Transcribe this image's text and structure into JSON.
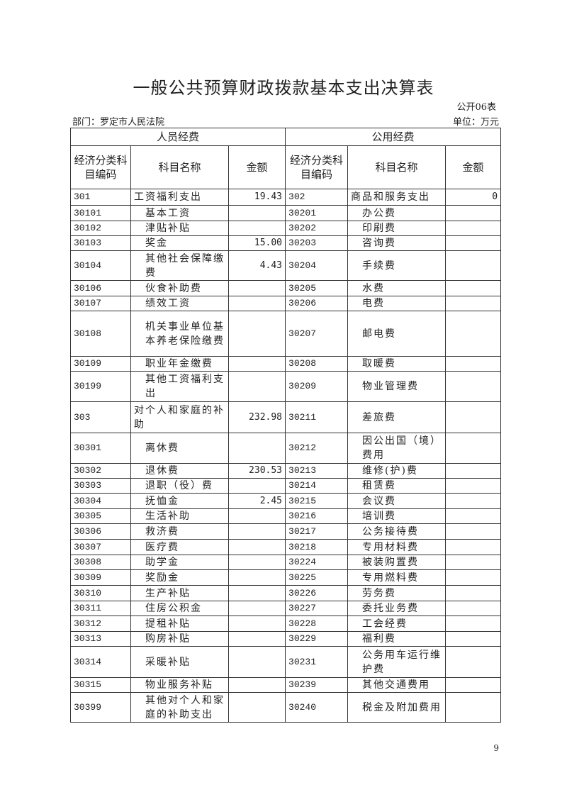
{
  "title": "一般公共预算财政拨款基本支出决算表",
  "form_no": "公开06表",
  "department": "部门：罗定市人民法院",
  "unit": "单位：万元",
  "groups": [
    "人员经费",
    "公用经费"
  ],
  "headers": [
    "经济分类科目编码",
    "科目名称",
    "金额",
    "经济分类科目编码",
    "科目名称",
    "金额"
  ],
  "rows": [
    [
      "301",
      "工资福利支出",
      "19.43",
      "302",
      "商品和服务支出",
      "0"
    ],
    [
      "30101",
      "基本工资",
      "",
      "30201",
      "办公费",
      ""
    ],
    [
      "30102",
      "津贴补贴",
      "",
      "30202",
      "印刷费",
      ""
    ],
    [
      "30103",
      "奖金",
      "15.00",
      "30203",
      "咨询费",
      ""
    ],
    [
      "30104",
      "其他社会保障缴费",
      "4.43",
      "30204",
      "手续费",
      ""
    ],
    [
      "30106",
      "伙食补助费",
      "",
      "30205",
      "水费",
      ""
    ],
    [
      "30107",
      "绩效工资",
      "",
      "30206",
      "电费",
      ""
    ],
    [
      "30108",
      "机关事业单位基本养老保险缴费",
      "",
      "30207",
      "邮电费",
      ""
    ],
    [
      "30109",
      "职业年金缴费",
      "",
      "30208",
      "取暖费",
      ""
    ],
    [
      "30199",
      "其他工资福利支出",
      "",
      "30209",
      "物业管理费",
      ""
    ],
    [
      "303",
      "对个人和家庭的补助",
      "232.98",
      "30211",
      "差旅费",
      ""
    ],
    [
      "30301",
      "离休费",
      "",
      "30212",
      "因公出国（境）费用",
      ""
    ],
    [
      "30302",
      "退休费",
      "230.53",
      "30213",
      "维修(护)费",
      ""
    ],
    [
      "30303",
      "退职（役）费",
      "",
      "30214",
      "租赁费",
      ""
    ],
    [
      "30304",
      "抚恤金",
      "2.45",
      "30215",
      "会议费",
      ""
    ],
    [
      "30305",
      "生活补助",
      "",
      "30216",
      "培训费",
      ""
    ],
    [
      "30306",
      "救济费",
      "",
      "30217",
      "公务接待费",
      ""
    ],
    [
      "30307",
      "医疗费",
      "",
      "30218",
      "专用材料费",
      ""
    ],
    [
      "30308",
      "助学金",
      "",
      "30224",
      "被装购置费",
      ""
    ],
    [
      "30309",
      "奖励金",
      "",
      "30225",
      "专用燃料费",
      ""
    ],
    [
      "30310",
      "生产补贴",
      "",
      "30226",
      "劳务费",
      ""
    ],
    [
      "30311",
      "住房公积金",
      "",
      "30227",
      "委托业务费",
      ""
    ],
    [
      "30312",
      "提租补贴",
      "",
      "30228",
      "工会经费",
      ""
    ],
    [
      "30313",
      "购房补贴",
      "",
      "30229",
      "福利费",
      ""
    ],
    [
      "30314",
      "采暖补贴",
      "",
      "30231",
      "公务用车运行维护费",
      ""
    ],
    [
      "30315",
      "物业服务补贴",
      "",
      "30239",
      "其他交通费用",
      ""
    ],
    [
      "30399",
      "其他对个人和家庭的补助支出",
      "",
      "30240",
      "税金及附加费用",
      ""
    ]
  ],
  "page_number": "9"
}
